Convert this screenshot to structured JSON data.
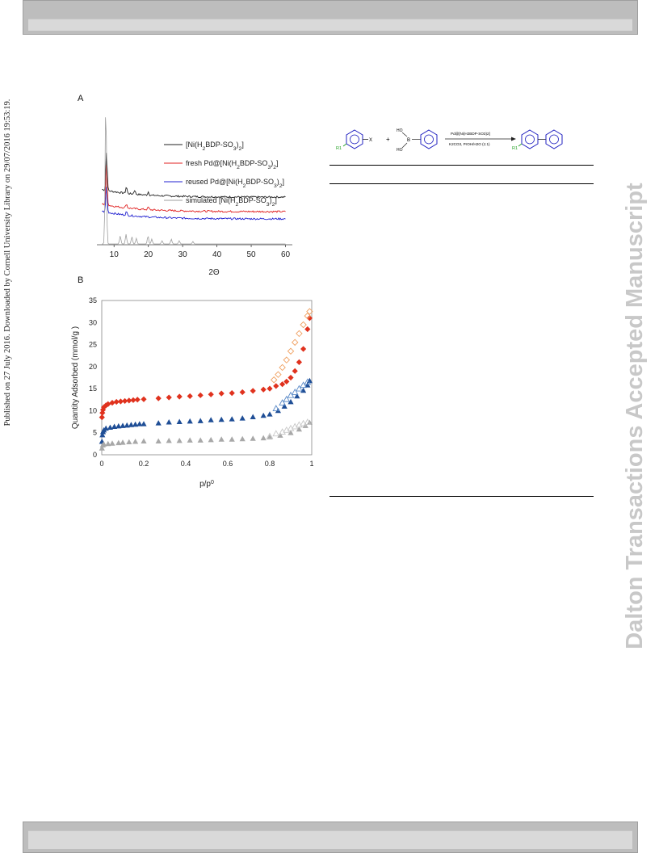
{
  "side_note": "Published on 27 July 2016. Downloaded by Cornell University Library on 29/07/2016 19:53:19.",
  "watermark": "Dalton Transactions Accepted Manuscript",
  "panel_a": {
    "label": "A",
    "legend": [
      {
        "text": "[Ni(H2BDP-SO3)2]",
        "color": "#222222"
      },
      {
        "text": "fresh Pd@[Ni(H2BDP-SO3)2]",
        "color": "#e02020"
      },
      {
        "text": "reused Pd@[Ni(H2BDP-SO3)2]",
        "color": "#2020d0"
      },
      {
        "text": "simulated [Ni(H2BDP-SO3)2]",
        "color": "#9e9e9e"
      }
    ]
  },
  "panel_b": {
    "label": "B"
  },
  "scheme": {
    "substituent_left": "R1",
    "halide": "X",
    "plus": "+",
    "boron": "B",
    "ho_top": "HO",
    "ho_bottom": "HO",
    "arrow_top": "Pd@[Ni(H2BDP-SO3)2]",
    "arrow_bottom": "K2CO3, PrOH/H2O (1:1)",
    "substituent_product": "R1"
  },
  "chart_data": [
    {
      "type": "line",
      "title": "",
      "xlabel": "2Θ",
      "ylabel": "",
      "xlim": [
        5,
        62
      ],
      "xticks": [
        10,
        20,
        30,
        40,
        50,
        60
      ],
      "yticks": [],
      "legend_position": "right",
      "series": [
        {
          "name": "[Ni(H2BDP-SO3)2]",
          "color": "#222222",
          "offset": 58,
          "peaks": [
            [
              7.8,
              48
            ],
            [
              13.6,
              8
            ],
            [
              16,
              5
            ],
            [
              20,
              4
            ]
          ]
        },
        {
          "name": "fresh Pd@[Ni(H2BDP-SO3)2]",
          "color": "#e02020",
          "offset": 40,
          "peaks": [
            [
              7.8,
              50
            ],
            [
              13.6,
              5
            ],
            [
              20,
              3
            ]
          ]
        },
        {
          "name": "reused Pd@[Ni(H2BDP-SO3)2]",
          "color": "#2020d0",
          "offset": 31,
          "peaks": [
            [
              7.8,
              32
            ],
            [
              13.6,
              4
            ]
          ]
        },
        {
          "name": "simulated [Ni(H2BDP-SO3)2]",
          "color": "#9e9e9e",
          "offset": 0,
          "peaks": [
            [
              7.6,
              178
            ],
            [
              11.8,
              10
            ],
            [
              13.5,
              12
            ],
            [
              15.2,
              9
            ],
            [
              16.5,
              7
            ],
            [
              19.9,
              10
            ],
            [
              21,
              6
            ],
            [
              24,
              4
            ],
            [
              26.7,
              6
            ],
            [
              29,
              4
            ],
            [
              33,
              3
            ]
          ]
        }
      ]
    },
    {
      "type": "scatter",
      "title": "",
      "xlabel": "p/p0",
      "ylabel": "Quantity Adsorbed (mmol/g )",
      "xlim": [
        0,
        1
      ],
      "ylim": [
        0,
        35
      ],
      "xticks": [
        0,
        0.2,
        0.4,
        0.6,
        0.8,
        1
      ],
      "yticks": [
        0,
        5,
        10,
        15,
        20,
        25,
        30,
        35
      ],
      "series": [
        {
          "name": "",
          "marker": "diamond",
          "filled": true,
          "color": "#e0321e",
          "x": [
            0.001,
            0.003,
            0.006,
            0.01,
            0.02,
            0.03,
            0.05,
            0.07,
            0.09,
            0.11,
            0.13,
            0.15,
            0.17,
            0.2,
            0.27,
            0.32,
            0.37,
            0.42,
            0.47,
            0.52,
            0.57,
            0.62,
            0.67,
            0.72,
            0.77,
            0.8,
            0.83,
            0.86,
            0.88,
            0.9,
            0.92,
            0.94,
            0.96,
            0.98,
            0.99
          ],
          "y": [
            8.5,
            9.5,
            10.2,
            10.8,
            11.2,
            11.5,
            11.8,
            12.0,
            12.1,
            12.2,
            12.3,
            12.4,
            12.5,
            12.6,
            12.8,
            13.0,
            13.2,
            13.3,
            13.5,
            13.7,
            13.9,
            14.0,
            14.2,
            14.5,
            14.8,
            15.0,
            15.6,
            16.0,
            16.6,
            17.5,
            19.0,
            21.0,
            24.0,
            28.5,
            31.0
          ]
        },
        {
          "name": "",
          "marker": "diamond",
          "filled": false,
          "color": "#f0a060",
          "x": [
            0.82,
            0.84,
            0.86,
            0.88,
            0.9,
            0.92,
            0.94,
            0.96,
            0.98,
            0.99
          ],
          "y": [
            17.0,
            18.2,
            19.8,
            21.5,
            23.5,
            25.5,
            27.5,
            29.5,
            31.5,
            32.5
          ]
        },
        {
          "name": "",
          "marker": "triangle",
          "filled": true,
          "color": "#1f4e96",
          "x": [
            0.001,
            0.003,
            0.006,
            0.01,
            0.02,
            0.04,
            0.06,
            0.08,
            0.1,
            0.12,
            0.14,
            0.16,
            0.18,
            0.2,
            0.27,
            0.32,
            0.37,
            0.42,
            0.47,
            0.52,
            0.57,
            0.62,
            0.67,
            0.72,
            0.77,
            0.8,
            0.84,
            0.87,
            0.9,
            0.93,
            0.96,
            0.98,
            0.99
          ],
          "y": [
            3.0,
            4.5,
            5.2,
            5.6,
            6.0,
            6.2,
            6.4,
            6.5,
            6.6,
            6.7,
            6.8,
            6.9,
            7.0,
            7.0,
            7.2,
            7.4,
            7.5,
            7.6,
            7.7,
            7.9,
            8.0,
            8.1,
            8.3,
            8.6,
            8.9,
            9.2,
            10.0,
            11.0,
            12.0,
            13.3,
            14.6,
            15.8,
            16.8
          ]
        },
        {
          "name": "",
          "marker": "triangle",
          "filled": false,
          "color": "#5a8ac8",
          "x": [
            0.83,
            0.86,
            0.88,
            0.9,
            0.92,
            0.94,
            0.96,
            0.98
          ],
          "y": [
            10.5,
            11.8,
            12.6,
            13.5,
            14.2,
            15.0,
            15.8,
            16.5
          ]
        },
        {
          "name": "",
          "marker": "triangle",
          "filled": true,
          "color": "#a8a8a8",
          "x": [
            0.001,
            0.005,
            0.01,
            0.03,
            0.05,
            0.08,
            0.1,
            0.13,
            0.16,
            0.2,
            0.27,
            0.32,
            0.37,
            0.42,
            0.47,
            0.52,
            0.57,
            0.62,
            0.67,
            0.72,
            0.77,
            0.8,
            0.85,
            0.9,
            0.94,
            0.97,
            0.99
          ],
          "y": [
            1.5,
            2.2,
            2.4,
            2.5,
            2.6,
            2.7,
            2.8,
            2.9,
            3.0,
            3.1,
            3.1,
            3.2,
            3.2,
            3.3,
            3.3,
            3.4,
            3.5,
            3.5,
            3.6,
            3.7,
            3.8,
            4.0,
            4.4,
            5.0,
            5.8,
            6.6,
            7.3
          ]
        },
        {
          "name": "",
          "marker": "triangle",
          "filled": false,
          "color": "#c8c8c8",
          "x": [
            0.8,
            0.83,
            0.86,
            0.88,
            0.9,
            0.92,
            0.94,
            0.96,
            0.98
          ],
          "y": [
            4.2,
            4.8,
            5.2,
            5.6,
            6.0,
            6.4,
            6.8,
            7.1,
            7.4
          ]
        }
      ]
    }
  ]
}
